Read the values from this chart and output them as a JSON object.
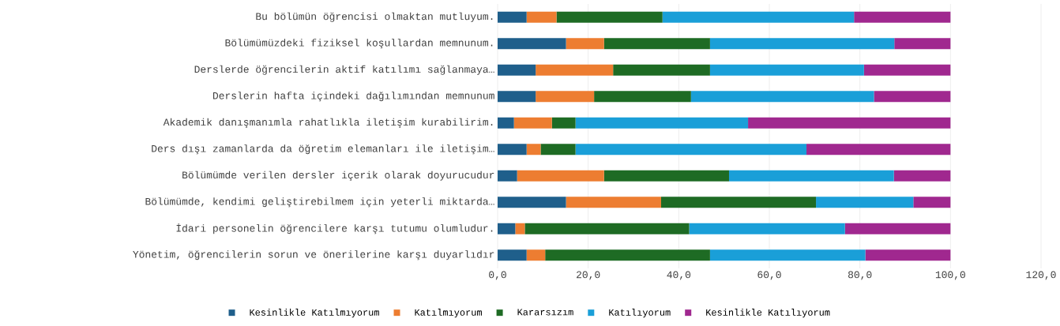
{
  "chart_data": {
    "type": "bar",
    "orientation": "horizontal",
    "stacked": true,
    "categories": [
      "Bu bölümün öğrencisi olmaktan mutluyum.",
      "Bölümümüzdeki fiziksel koşullardan memnunum.",
      "Derslerde öğrencilerin aktif katılımı sağlanmaya…",
      "Derslerin hafta içindeki dağılımından memnunum",
      "Akademik danışmanımla rahatlıkla iletişim kurabilirim.",
      "Ders dışı zamanlarda da öğretim elemanları ile iletişim…",
      "Bölümümde verilen dersler içerik olarak doyurucudur",
      "Bölümümde, kendimi geliştirebilmem için yeterli miktarda…",
      "İdari personelin öğrencilere karşı tutumu olumludur.",
      "Yönetim, öğrencilerin sorun ve önerilerine karşı duyarlıdır"
    ],
    "series": [
      {
        "name": "Kesinlikle Katılmıyorum",
        "color": "#1f5f8b",
        "values": [
          6.4,
          15.1,
          8.4,
          8.4,
          3.6,
          6.4,
          4.3,
          15.1,
          3.9,
          6.4
        ]
      },
      {
        "name": "Katılmıyorum",
        "color": "#ed7d31",
        "values": [
          6.6,
          8.4,
          17.1,
          12.9,
          8.4,
          3.1,
          19.2,
          21.0,
          2.1,
          4.1
        ]
      },
      {
        "name": "Kararsızım",
        "color": "#1e6b24",
        "values": [
          23.4,
          23.4,
          21.4,
          21.4,
          5.2,
          7.7,
          27.6,
          34.2,
          36.3,
          36.4
        ]
      },
      {
        "name": "Katılıyorum",
        "color": "#1a9fd8",
        "values": [
          42.3,
          40.7,
          34.0,
          40.4,
          38.1,
          51.0,
          36.4,
          21.5,
          34.4,
          34.3
        ]
      },
      {
        "name": "Kesinlikle Katılıyorum",
        "color": "#a0288f",
        "values": [
          21.3,
          12.4,
          19.1,
          16.9,
          44.7,
          31.8,
          12.5,
          8.2,
          23.3,
          18.8
        ]
      }
    ],
    "xlim": [
      0,
      120
    ],
    "xticks": [
      {
        "value": 0,
        "label": "0,0"
      },
      {
        "value": 20,
        "label": "20,0"
      },
      {
        "value": 40,
        "label": "40,0"
      },
      {
        "value": 60,
        "label": "60,0"
      },
      {
        "value": 80,
        "label": "80,0"
      },
      {
        "value": 100,
        "label": "100,0"
      },
      {
        "value": 120,
        "label": "120,0"
      }
    ],
    "grid": "x",
    "legend": "bottom"
  }
}
